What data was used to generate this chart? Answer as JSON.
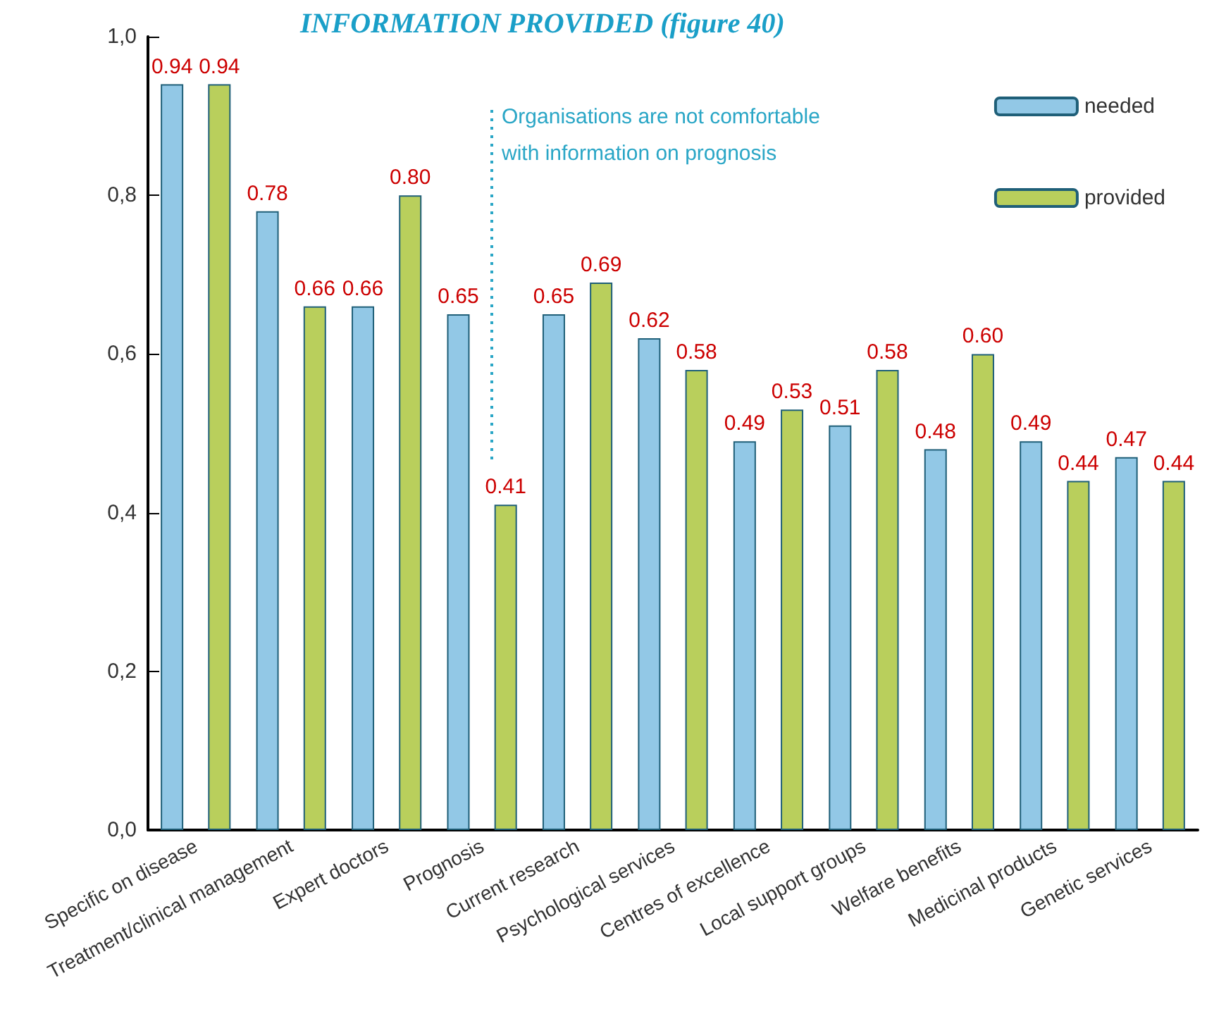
{
  "chart_data": {
    "type": "bar",
    "title": "INFORMATION PROVIDED (figure 40)",
    "categories": [
      "Specific on disease",
      "Treatment/clinical management",
      "Expert doctors",
      "Prognosis",
      "Current research",
      "Psychological services",
      "Centres of excellence",
      "Local support groups",
      "Welfare benefits",
      "Medicinal products",
      "Genetic services"
    ],
    "series": [
      {
        "name": "needed",
        "color": "#92c8e6",
        "values": [
          0.94,
          0.78,
          0.66,
          0.65,
          0.65,
          0.62,
          0.49,
          0.51,
          0.48,
          0.49,
          0.47
        ],
        "value_labels": [
          "0.94",
          "0.78",
          "0.66",
          "0.65",
          "0.65",
          "0.62",
          "0.49",
          "0.51",
          "0.48",
          "0.49",
          "0.47"
        ]
      },
      {
        "name": "provided",
        "color": "#b9cf5c",
        "values": [
          0.94,
          0.66,
          0.8,
          0.41,
          0.69,
          0.58,
          0.53,
          0.58,
          0.6,
          0.44,
          0.44
        ],
        "value_labels": [
          "0.94",
          "0.66",
          "0.80",
          "0.41",
          "0.69",
          "0.58",
          "0.53",
          "0.58",
          "0.60",
          "0.44",
          "0.44"
        ]
      }
    ],
    "ylim": [
      0,
      1
    ],
    "yticks": [
      {
        "value": 0,
        "label": "0,0"
      },
      {
        "value": 0.2,
        "label": "0,2"
      },
      {
        "value": 0.4,
        "label": "0,4"
      },
      {
        "value": 0.6,
        "label": "0,6"
      },
      {
        "value": 0.8,
        "label": "0,8"
      },
      {
        "value": 1,
        "label": "1,0"
      }
    ],
    "annotations": [
      "Organisations are not comfortable\nwith information on prognosis"
    ],
    "grid": false,
    "legend": "top right"
  }
}
